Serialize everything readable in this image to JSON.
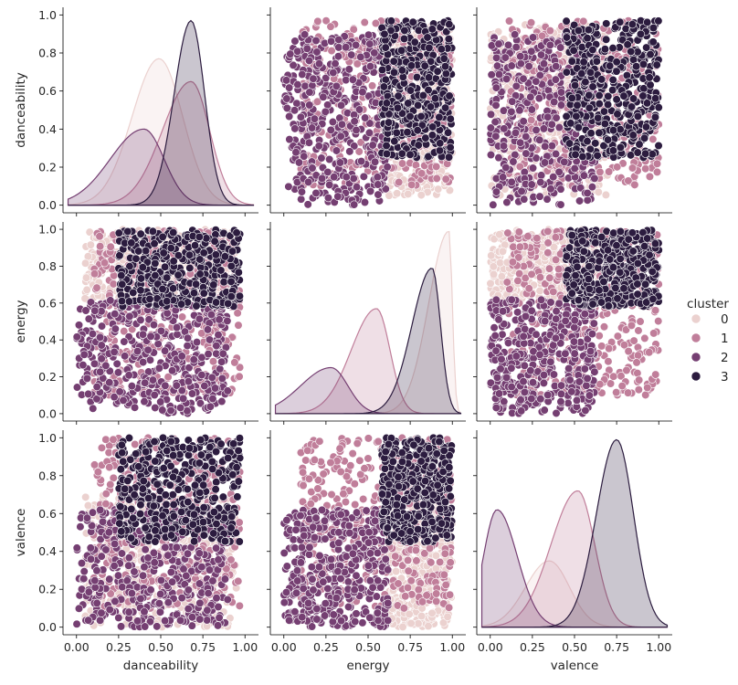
{
  "chart_data": {
    "type": "scatter",
    "subtype": "pairplot",
    "variables": [
      "danceability",
      "energy",
      "valence"
    ],
    "diagonal": "kde",
    "hue": "cluster",
    "ticks": [
      "0.0",
      "0.2",
      "0.4",
      "0.6",
      "0.8",
      "1.0"
    ],
    "xticks": [
      "0.00",
      "0.25",
      "0.50",
      "0.75",
      "1.00"
    ],
    "xlim": [
      -0.08,
      1.08
    ],
    "ylim": [
      -0.04,
      1.04
    ],
    "legend": {
      "title": "cluster",
      "placement": "right",
      "entries": [
        {
          "label": "0",
          "color": "#ebd1cf"
        },
        {
          "label": "1",
          "color": "#c07e9a"
        },
        {
          "label": "2",
          "color": "#753f72"
        },
        {
          "label": "3",
          "color": "#2c1c3f"
        }
      ]
    },
    "clusters": [
      {
        "name": "0",
        "color": "#ebd1cf",
        "points": 400,
        "danceability": [
          0.05,
          0.95
        ],
        "energy": [
          0.62,
          1.0
        ],
        "valence": [
          0.0,
          0.7
        ],
        "kde_danceability": {
          "peak_x": 0.49,
          "peak_y": 0.77
        },
        "kde_energy": {
          "peak_x": 0.98,
          "peak_y": 0.99
        },
        "kde_valence": {
          "peak_x": 0.35,
          "peak_y": 0.35
        }
      },
      {
        "name": "1",
        "color": "#c07e9a",
        "points": 400,
        "danceability": [
          0.1,
          0.97
        ],
        "energy": [
          0.1,
          1.0
        ],
        "valence": [
          0.1,
          1.0
        ],
        "kde_danceability": {
          "peak_x": 0.68,
          "peak_y": 0.65
        },
        "kde_energy": {
          "peak_x": 0.55,
          "peak_y": 0.57
        },
        "kde_valence": {
          "peak_x": 0.52,
          "peak_y": 0.72
        }
      },
      {
        "name": "2",
        "color": "#753f72",
        "points": 400,
        "danceability": [
          0.0,
          0.9
        ],
        "energy": [
          0.0,
          0.62
        ],
        "valence": [
          0.0,
          0.62
        ],
        "kde_danceability": {
          "peak_x": 0.4,
          "peak_y": 0.4
        },
        "kde_energy": {
          "peak_x": 0.28,
          "peak_y": 0.25
        },
        "kde_valence": {
          "peak_x": 0.04,
          "peak_y": 0.62
        }
      },
      {
        "name": "3",
        "color": "#2c1c3f",
        "points": 400,
        "danceability": [
          0.25,
          0.97
        ],
        "energy": [
          0.58,
          1.0
        ],
        "valence": [
          0.45,
          1.0
        ],
        "kde_danceability": {
          "peak_x": 0.68,
          "peak_y": 0.97
        },
        "kde_energy": {
          "peak_x": 0.88,
          "peak_y": 0.79
        },
        "kde_valence": {
          "peak_x": 0.75,
          "peak_y": 0.99
        }
      }
    ]
  }
}
